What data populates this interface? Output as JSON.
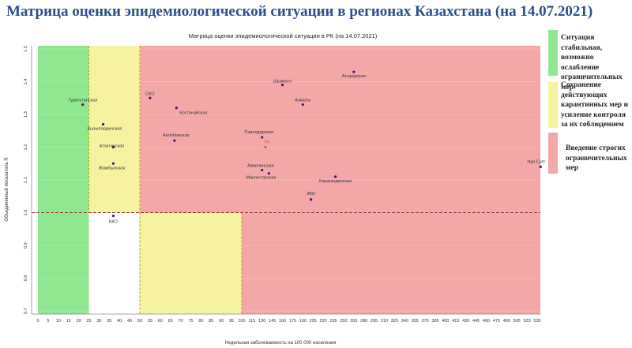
{
  "page_title": "Матрица оценки эпидемиологической ситуации в регионах Казахстана (на 14.07.2021)",
  "legend": [
    {
      "label": "Ситуация стабильная, возможно ослабление ограничительных мер",
      "color": "#8fe88f"
    },
    {
      "label": "Сохранение действующих карантинных мер и усиление контроля за их соблюдением",
      "color": "#f6f3a0"
    },
    {
      "label": "Введение строгих ограничительных мер",
      "color": "#f4a7a7"
    }
  ],
  "chart_data": {
    "type": "scatter",
    "title": "Матрица оценки эпидемиологической ситуации в РК (на 14.07.2021)",
    "xlabel": "Недельная заболеваемость на 100 000 населения",
    "ylabel": "Объединенный показатель R",
    "xlim": [
      0,
      550
    ],
    "ylim": [
      0.7,
      1.5
    ],
    "x_ticks": [
      0,
      5,
      10,
      15,
      20,
      25,
      30,
      35,
      40,
      45,
      50,
      55,
      60,
      65,
      70,
      75,
      80,
      85,
      90,
      95,
      100,
      115,
      130,
      145,
      160,
      175,
      190,
      205,
      220,
      235,
      250,
      265,
      280,
      295,
      310,
      325,
      340,
      355,
      370,
      385,
      400,
      415,
      430,
      445,
      460,
      475,
      490,
      505,
      520,
      535
    ],
    "y_ticks": [
      "0.7",
      "0.8",
      "0.9",
      "1.0",
      "1.1",
      "1.2",
      "1.3",
      "1.4",
      "1.5"
    ],
    "zones": [
      {
        "name": "green",
        "color": "#8fe88f",
        "x0": 0,
        "x1": 25,
        "y0": 0.7,
        "y1": 1.52
      },
      {
        "name": "yellow-upper",
        "color": "#f6f3a0",
        "x0": 25,
        "x1": 50,
        "y0": 1.0,
        "y1": 1.52
      },
      {
        "name": "red-upper",
        "color": "#f4a7a7",
        "x0": 50,
        "x1": 550,
        "y0": 1.0,
        "y1": 1.52
      },
      {
        "name": "yellow-lower",
        "color": "#f6f3a0",
        "x0": 50,
        "x1": 100,
        "y0": 0.7,
        "y1": 1.0
      },
      {
        "name": "red-lower",
        "color": "#f4a7a7",
        "x0": 100,
        "x1": 550,
        "y0": 0.7,
        "y1": 1.0
      }
    ],
    "threshold_y": 1.0,
    "points": [
      {
        "label": "Атырауская",
        "x": 265,
        "y": 1.43
      },
      {
        "label": "Шымкент",
        "x": 160,
        "y": 1.39
      },
      {
        "label": "Алматы",
        "x": 190,
        "y": 1.33
      },
      {
        "label": "СКО",
        "x": 55,
        "y": 1.35
      },
      {
        "label": "Туркестанская",
        "x": 22,
        "y": 1.33
      },
      {
        "label": "Костанайская",
        "x": 68,
        "y": 1.32
      },
      {
        "label": "Кызылординская",
        "x": 32,
        "y": 1.27
      },
      {
        "label": "Павлодарская",
        "x": 130,
        "y": 1.23
      },
      {
        "label": "РК",
        "x": 135,
        "y": 1.2,
        "highlight": true
      },
      {
        "label": "Актюбинская",
        "x": 67,
        "y": 1.22
      },
      {
        "label": "Атактинская",
        "x": 37,
        "y": 1.2
      },
      {
        "label": "Жамбылская",
        "x": 37,
        "y": 1.15
      },
      {
        "label": "Акмолинская",
        "x": 130,
        "y": 1.13
      },
      {
        "label": "Мангистауская",
        "x": 140,
        "y": 1.12
      },
      {
        "label": "Карагандинская",
        "x": 238,
        "y": 1.11
      },
      {
        "label": "ЗКО",
        "x": 202,
        "y": 1.04
      },
      {
        "label": "ВКО",
        "x": 37,
        "y": 0.99
      },
      {
        "label": "Нур-Султан",
        "x": 540,
        "y": 1.14
      }
    ]
  }
}
